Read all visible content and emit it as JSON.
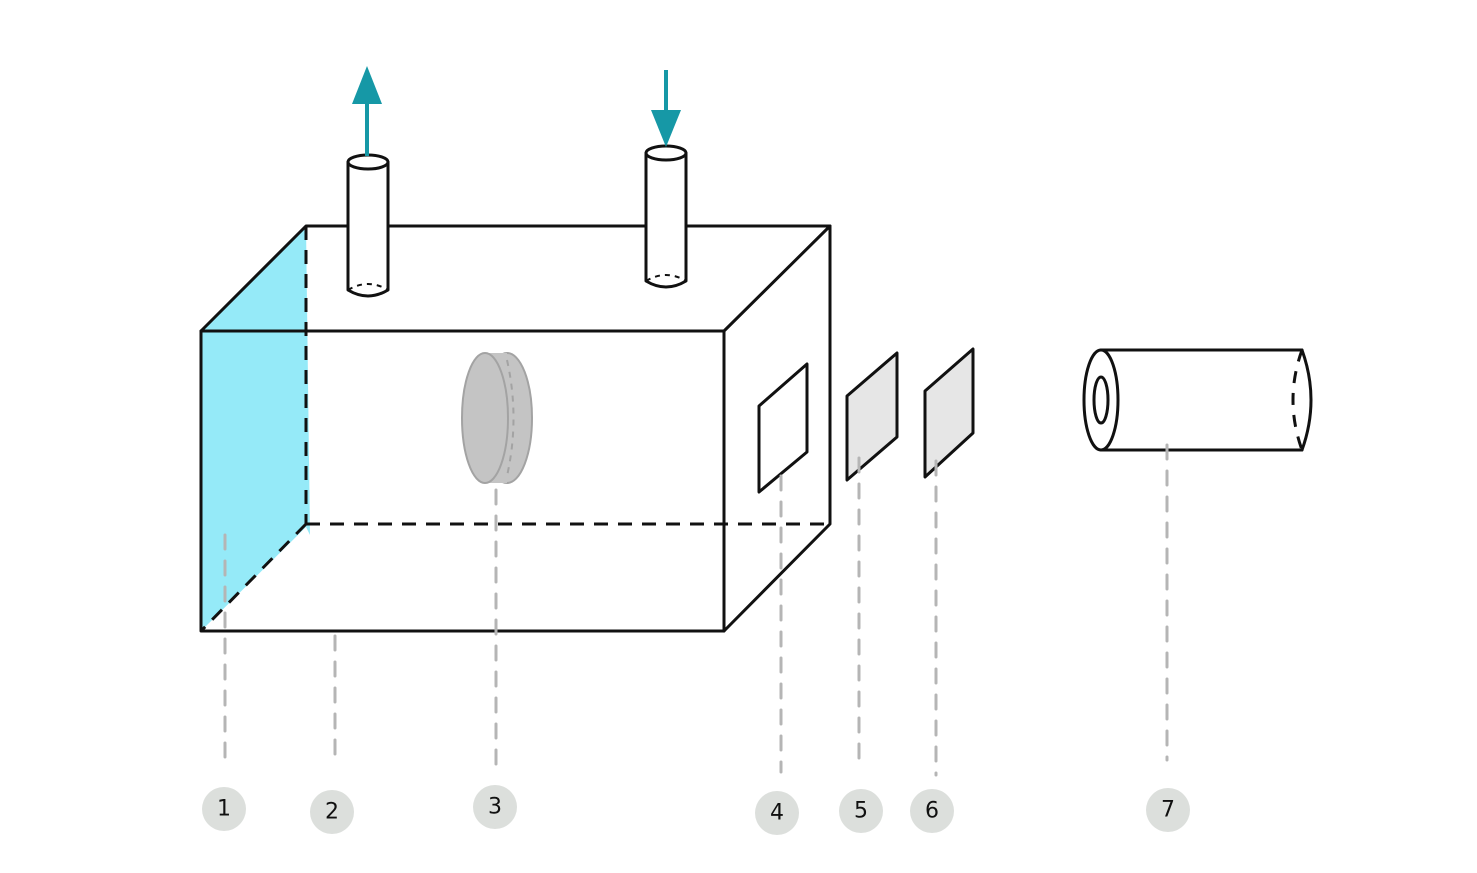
{
  "colors": {
    "water": "#95eaf8",
    "arrow": "#1698a6",
    "lens": "#c4c4c4",
    "lens_stroke": "#a3a3a3",
    "plate": "#e6e6e6",
    "leader": "#b5b5b5",
    "callout": "#dcdfdc"
  },
  "flow": {
    "outlet_arrow_icon": "arrow-up-icon",
    "inlet_arrow_icon": "arrow-down-icon"
  },
  "callouts": [
    {
      "label": "1"
    },
    {
      "label": "2"
    },
    {
      "label": "3"
    },
    {
      "label": "4"
    },
    {
      "label": "5"
    },
    {
      "label": "6"
    },
    {
      "label": "7"
    }
  ]
}
